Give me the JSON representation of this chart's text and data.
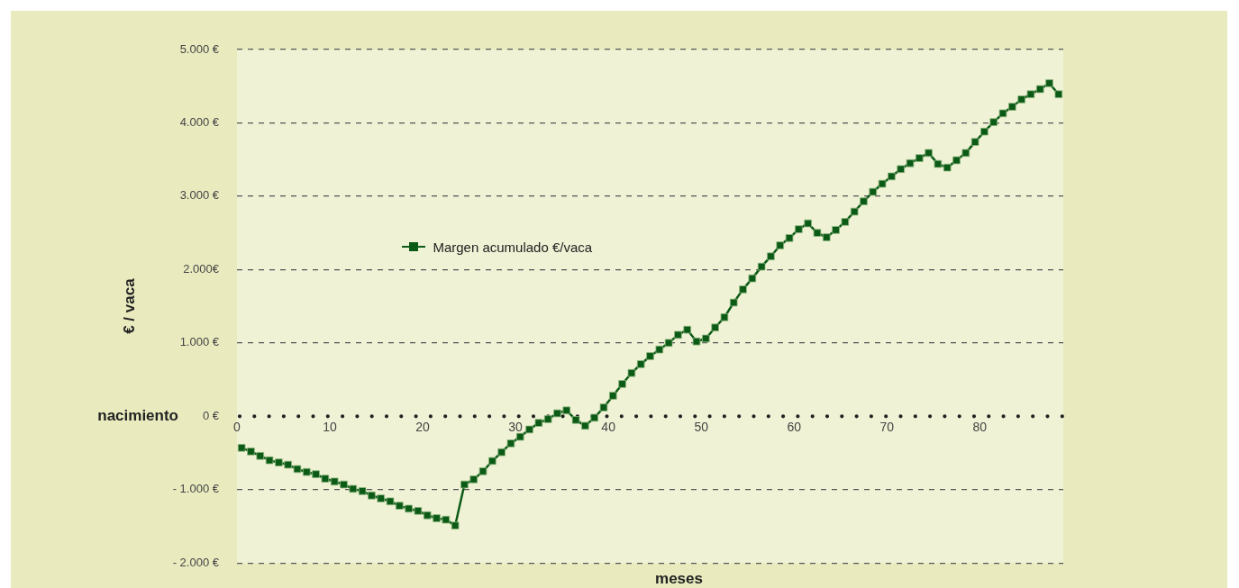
{
  "chart_data": {
    "type": "line",
    "xlabel": "meses",
    "ylabel": "€ / vaca",
    "x": [
      0.5,
      1.5,
      2.5,
      3.5,
      4.5,
      5.5,
      6.5,
      7.5,
      8.5,
      9.5,
      10.5,
      11.5,
      12.5,
      13.5,
      14.5,
      15.5,
      16.5,
      17.5,
      18.5,
      19.5,
      20.5,
      21.5,
      22.5,
      23.5,
      24.5,
      25.5,
      26.5,
      27.5,
      28.5,
      29.5,
      30.5,
      31.5,
      32.5,
      33.5,
      34.5,
      35.5,
      36.5,
      37.5,
      38.5,
      39.5,
      40.5,
      41.5,
      42.5,
      43.5,
      44.5,
      45.5,
      46.5,
      47.5,
      48.5,
      49.5,
      50.5,
      51.5,
      52.5,
      53.5,
      54.5,
      55.5,
      56.5,
      57.5,
      58.5,
      59.5,
      60.5,
      61.5,
      62.5,
      63.5,
      64.5,
      65.5,
      66.5,
      67.5,
      68.5,
      69.5,
      70.5,
      71.5,
      72.5,
      73.5,
      74.5,
      75.5,
      76.5,
      77.5,
      78.5,
      79.5,
      80.5,
      81.5,
      82.5,
      83.5,
      84.5,
      85.5,
      86.5,
      87.5,
      88.5
    ],
    "series": [
      {
        "name": "Margen acumulado €/vaca",
        "color": "#0b5a16",
        "values": [
          -430,
          -480,
          -540,
          -600,
          -630,
          -660,
          -720,
          -760,
          -790,
          -850,
          -890,
          -930,
          -990,
          -1020,
          -1080,
          -1120,
          -1160,
          -1220,
          -1260,
          -1290,
          -1350,
          -1390,
          -1410,
          -1490,
          -930,
          -860,
          -750,
          -610,
          -490,
          -370,
          -280,
          -180,
          -90,
          -40,
          40,
          80,
          -50,
          -130,
          -20,
          120,
          280,
          440,
          590,
          710,
          820,
          910,
          1000,
          1110,
          1180,
          1020,
          1060,
          1210,
          1350,
          1550,
          1730,
          1880,
          2040,
          2180,
          2330,
          2430,
          2550,
          2630,
          2500,
          2440,
          2540,
          2650,
          2790,
          2930,
          3060,
          3170,
          3270,
          3370,
          3450,
          3520,
          3590,
          3440,
          3390,
          3490,
          3590,
          3740,
          3880,
          4010,
          4130,
          4220,
          4320,
          4390,
          4460,
          4540,
          4390
        ]
      }
    ],
    "xlim": [
      0,
      89
    ],
    "xticks": [
      0,
      10,
      20,
      30,
      40,
      50,
      60,
      70,
      80
    ],
    "ylim": [
      -2000,
      5000
    ],
    "yticks": [
      {
        "value": -2000,
        "label": "- 2.000 €"
      },
      {
        "value": -1000,
        "label": "- 1.000 €"
      },
      {
        "value": 0,
        "label": "0 €"
      },
      {
        "value": 1000,
        "label": "1.000 €"
      },
      {
        "value": 2000,
        "label": "2.000€"
      },
      {
        "value": 3000,
        "label": "3.000 €"
      },
      {
        "value": 4000,
        "label": "4.000 €"
      },
      {
        "value": 5000,
        "label": "5.000 €"
      }
    ],
    "ref_lines": [
      {
        "axis": "y",
        "value": 0,
        "label": "nacimiento",
        "line_style": "dotted",
        "color": "#222222"
      }
    ],
    "grid": "y",
    "legend": "top left",
    "marker": "square",
    "line_style": "solid"
  }
}
